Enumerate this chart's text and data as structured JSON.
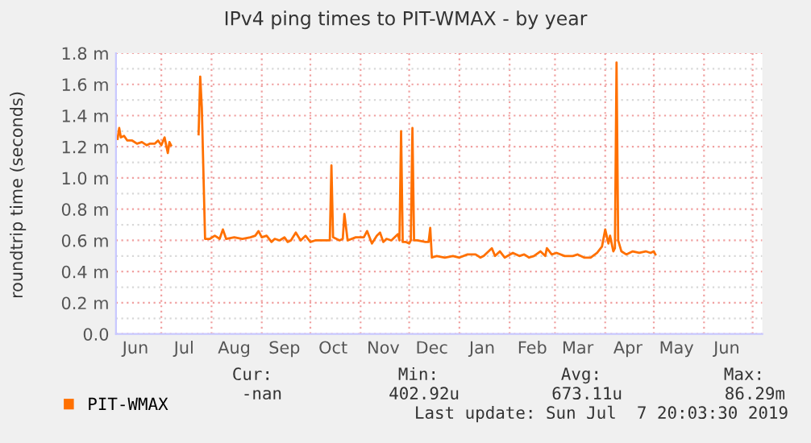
{
  "chart_data": {
    "type": "line",
    "title": "IPv4 ping times to PIT-WMAX - by year",
    "ylabel": "roundtrip time (seconds)",
    "x": [
      "2018-06-04",
      "2018-06-05",
      "2018-06-06",
      "2018-06-08",
      "2018-06-10",
      "2018-06-13",
      "2018-06-16",
      "2018-06-19",
      "2018-06-22",
      "2018-06-24",
      "2018-06-27",
      "2018-06-29",
      "2018-07-01",
      "2018-07-03",
      "2018-07-05",
      "2018-07-06",
      "2018-07-07",
      "2018-07-15",
      "2018-07-24",
      "2018-07-25",
      "2018-07-26",
      "2018-07-28",
      "2018-07-31",
      "2018-08-03",
      "2018-08-06",
      "2018-08-08",
      "2018-08-10",
      "2018-08-15",
      "2018-08-20",
      "2018-08-25",
      "2018-08-28",
      "2018-08-30",
      "2018-09-01",
      "2018-09-04",
      "2018-09-07",
      "2018-09-09",
      "2018-09-12",
      "2018-09-15",
      "2018-09-17",
      "2018-09-19",
      "2018-09-22",
      "2018-09-25",
      "2018-09-28",
      "2018-10-01",
      "2018-10-04",
      "2018-10-13",
      "2018-10-14",
      "2018-10-15",
      "2018-10-19",
      "2018-10-21",
      "2018-10-22",
      "2018-10-24",
      "2018-10-29",
      "2018-11-03",
      "2018-11-05",
      "2018-11-08",
      "2018-11-11",
      "2018-11-13",
      "2018-11-15",
      "2018-11-17",
      "2018-11-20",
      "2018-11-24",
      "2018-11-25",
      "2018-11-26",
      "2018-11-27",
      "2018-11-29",
      "2018-12-01",
      "2018-12-02",
      "2018-12-03",
      "2018-12-04",
      "2018-12-06",
      "2018-12-11",
      "2018-12-13",
      "2018-12-14",
      "2018-12-15",
      "2018-12-18",
      "2018-12-23",
      "2018-12-28",
      "2019-01-01",
      "2019-01-06",
      "2019-01-11",
      "2019-01-14",
      "2019-01-16",
      "2019-01-21",
      "2019-01-23",
      "2019-01-26",
      "2019-01-29",
      "2019-02-03",
      "2019-02-07",
      "2019-02-10",
      "2019-02-13",
      "2019-02-16",
      "2019-02-20",
      "2019-02-23",
      "2019-02-24",
      "2019-02-27",
      "2019-03-02",
      "2019-03-07",
      "2019-03-12",
      "2019-03-15",
      "2019-03-19",
      "2019-03-23",
      "2019-03-27",
      "2019-03-30",
      "2019-04-01",
      "2019-04-03",
      "2019-04-04",
      "2019-04-06",
      "2019-04-07",
      "2019-04-08",
      "2019-04-09",
      "2019-04-11",
      "2019-04-14",
      "2019-04-18",
      "2019-04-22",
      "2019-04-26",
      "2019-04-29",
      "2019-05-01",
      "2019-05-02"
    ],
    "series": [
      {
        "name": "PIT-WMAX",
        "color": "#ff7000",
        "values": [
          1.25,
          1.32,
          1.26,
          1.27,
          1.24,
          1.24,
          1.22,
          1.23,
          1.21,
          1.22,
          1.22,
          1.24,
          1.21,
          1.26,
          1.16,
          1.23,
          1.21,
          null,
          1.28,
          1.65,
          1.45,
          0.61,
          0.61,
          0.63,
          0.61,
          0.67,
          0.61,
          0.62,
          0.61,
          0.62,
          0.63,
          0.66,
          0.62,
          0.63,
          0.59,
          0.61,
          0.6,
          0.62,
          0.59,
          0.6,
          0.65,
          0.6,
          0.63,
          0.59,
          0.6,
          0.6,
          1.08,
          0.62,
          0.6,
          0.61,
          0.77,
          0.6,
          0.62,
          0.62,
          0.66,
          0.58,
          0.63,
          0.65,
          0.59,
          0.61,
          0.6,
          0.64,
          0.6,
          1.3,
          0.59,
          0.59,
          0.58,
          0.6,
          1.32,
          0.6,
          0.6,
          0.59,
          0.59,
          0.68,
          0.49,
          0.5,
          0.49,
          0.5,
          0.49,
          0.51,
          0.51,
          0.49,
          0.5,
          0.55,
          0.5,
          0.53,
          0.49,
          0.52,
          0.5,
          0.51,
          0.49,
          0.5,
          0.53,
          0.5,
          0.55,
          0.51,
          0.52,
          0.5,
          0.5,
          0.51,
          0.49,
          0.49,
          0.52,
          0.56,
          0.67,
          0.58,
          0.63,
          0.53,
          0.55,
          1.74,
          0.6,
          0.53,
          0.51,
          0.53,
          0.52,
          0.53,
          0.52,
          0.53,
          0.51
        ]
      }
    ],
    "xlim": [
      "2018-06-03",
      "2019-07-07"
    ],
    "xticks": [
      {
        "value": "2018-06-15",
        "label": "Jun"
      },
      {
        "value": "2018-07-15",
        "label": "Jul"
      },
      {
        "value": "2018-08-15",
        "label": "Aug"
      },
      {
        "value": "2018-09-15",
        "label": "Sep"
      },
      {
        "value": "2018-10-15",
        "label": "Oct"
      },
      {
        "value": "2018-11-15",
        "label": "Nov"
      },
      {
        "value": "2018-12-15",
        "label": "Dec"
      },
      {
        "value": "2019-01-15",
        "label": "Jan"
      },
      {
        "value": "2019-02-15",
        "label": "Feb"
      },
      {
        "value": "2019-03-15",
        "label": "Mar"
      },
      {
        "value": "2019-04-15",
        "label": "Apr"
      },
      {
        "value": "2019-05-15",
        "label": "May"
      },
      {
        "value": "2019-06-15",
        "label": "Jun"
      },
      {
        "value": "2018-07-01",
        "label": null
      },
      {
        "value": "2018-08-01",
        "label": null
      },
      {
        "value": "2018-09-01",
        "label": null
      },
      {
        "value": "2018-10-01",
        "label": null
      },
      {
        "value": "2018-11-01",
        "label": null
      },
      {
        "value": "2018-12-01",
        "label": null
      },
      {
        "value": "2019-01-01",
        "label": null
      },
      {
        "value": "2019-02-01",
        "label": null
      },
      {
        "value": "2019-03-01",
        "label": null
      },
      {
        "value": "2019-04-01",
        "label": null
      },
      {
        "value": "2019-05-01",
        "label": null
      },
      {
        "value": "2019-06-01",
        "label": null
      },
      {
        "value": "2019-07-01",
        "label": null
      }
    ],
    "ylim": [
      0,
      1.8
    ],
    "yticks": [
      {
        "value": 0,
        "label": "0.0"
      },
      {
        "value": 0.2,
        "label": "0.2 m"
      },
      {
        "value": 0.4,
        "label": "0.4 m"
      },
      {
        "value": 0.6,
        "label": "0.6 m"
      },
      {
        "value": 0.8,
        "label": "0.8 m"
      },
      {
        "value": 1.0,
        "label": "1.0 m"
      },
      {
        "value": 1.2,
        "label": "1.2 m"
      },
      {
        "value": 1.4,
        "label": "1.4 m"
      },
      {
        "value": 1.6,
        "label": "1.6 m"
      },
      {
        "value": 1.8,
        "label": "1.8 m"
      },
      {
        "value": 0.1,
        "label": null
      },
      {
        "value": 0.3,
        "label": null
      },
      {
        "value": 0.5,
        "label": null
      },
      {
        "value": 0.7,
        "label": null
      },
      {
        "value": 0.9,
        "label": null
      },
      {
        "value": 1.1,
        "label": null
      },
      {
        "value": 1.3,
        "label": null
      },
      {
        "value": 1.5,
        "label": null
      },
      {
        "value": 1.7,
        "label": null
      }
    ],
    "grid": true,
    "legend": "bottom left",
    "annotations": [
      "Cur:",
      "Min:",
      "Avg:",
      "Max:",
      "-nan",
      "402.92u",
      "673.11u",
      "86.29m",
      "Last update: Sun Jul  7 20:03:30 2019"
    ]
  }
}
